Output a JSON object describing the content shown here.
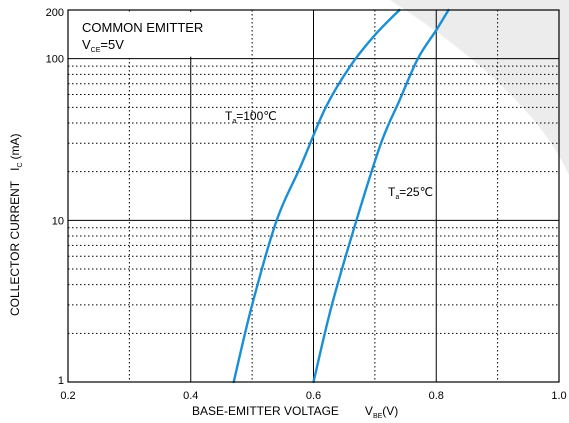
{
  "chart_data": {
    "type": "line",
    "title": "COMMON EMITTER",
    "condition": {
      "main": "V",
      "sub": "CE",
      "tail": "=5V"
    },
    "xlabel": {
      "main": "BASE-EMITTER VOLTAGE",
      "symbol": "V",
      "symbol_sub": "BE",
      "unit": "(V)"
    },
    "ylabel": {
      "main": "COLLECTOR CURRENT",
      "symbol": "I",
      "symbol_sub": "C",
      "unit": "(mA)"
    },
    "x_axis": {
      "range": [
        0.2,
        1.0
      ],
      "ticks": [
        "0.2",
        "0.4",
        "0.6",
        "0.8",
        "1.0"
      ]
    },
    "y_axis": {
      "scale": "log",
      "range": [
        1,
        200
      ],
      "ticks": [
        "1",
        "10",
        "100",
        "200"
      ]
    },
    "grid": true,
    "series": [
      {
        "name": {
          "main": "T",
          "sub": "a",
          "tail": "=100℃"
        },
        "color": "#1b8fd6",
        "x": [
          0.47,
          0.5,
          0.54,
          0.58,
          0.62,
          0.66,
          0.7,
          0.74
        ],
        "y": [
          1,
          3,
          10,
          22,
          50,
          90,
          140,
          200
        ]
      },
      {
        "name": {
          "main": "T",
          "sub": "a",
          "tail": "=25℃"
        },
        "color": "#1b8fd6",
        "x": [
          0.6,
          0.63,
          0.67,
          0.71,
          0.74,
          0.77,
          0.8,
          0.82
        ],
        "y": [
          1,
          3,
          10,
          30,
          55,
          100,
          150,
          200
        ]
      }
    ]
  }
}
